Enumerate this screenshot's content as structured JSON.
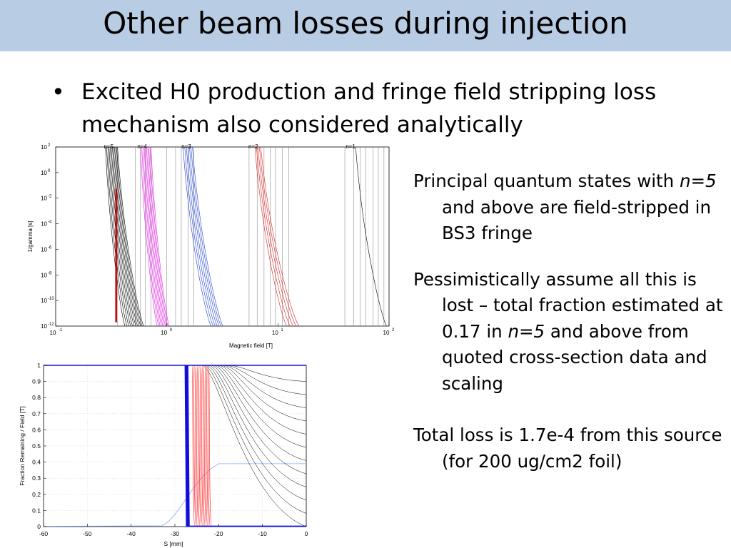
{
  "slide": {
    "title": "Other beam losses during injection",
    "bullet": "Excited H0 production and fringe field stripping loss mechanism also considered analytically",
    "para1_a": "Principal quantum states with ",
    "para1_b": "n=5",
    "para1_c": " and above are field-stripped in BS3 fringe",
    "para2_a": "Pessimistically assume all this is lost – total fraction estimated at 0.17 in ",
    "para2_b": "n=5",
    "para2_c": " and above from quoted cross-section data and scaling",
    "para3": "Total loss is 1.7e-4 from this source (for 200 ug/cm2 foil)"
  },
  "colors": {
    "title_bar": "#b8cce4",
    "marker": "#cc0000"
  },
  "chart_data": [
    {
      "type": "line",
      "xlabel": "Magnetic field [T]",
      "ylabel": "1/gamma [s]",
      "xscale": "log",
      "yscale": "log",
      "xlim": [
        0.1,
        100
      ],
      "ylim": [
        1e-12,
        100
      ],
      "xticks": [
        "10",
        "10",
        "10",
        "10"
      ],
      "xtick_exp": [
        "-1",
        "0",
        "1",
        "2"
      ],
      "yticks": [
        "10",
        "10",
        "10",
        "10",
        "10",
        "10",
        "10",
        "10"
      ],
      "ytick_exp": [
        "2",
        "0",
        "-2",
        "-4",
        "-6",
        "-8",
        "-10",
        "-12"
      ],
      "state_labels": [
        "n=5",
        "n=4",
        "n=3",
        "n=2",
        "n=1"
      ],
      "state_positions_T": [
        0.3,
        0.6,
        1.5,
        6.0,
        45.0
      ],
      "marker_field_T": 0.35,
      "groups": [
        {
          "name": "n=5",
          "color": "#000000",
          "count": 12,
          "b_at_top": [
            0.28,
            0.36
          ],
          "b_at_bottom": [
            0.42,
            0.62
          ],
          "vlines": [
            0.36
          ]
        },
        {
          "name": "n=4",
          "color": "#e020e0",
          "count": 10,
          "b_at_top": [
            0.58,
            0.72
          ],
          "b_at_bottom": [
            0.82,
            1.05
          ],
          "vlines": [
            0.52,
            0.58,
            0.64,
            0.72
          ]
        },
        {
          "name": "n=3",
          "color": "#2040d0",
          "count": 7,
          "b_at_top": [
            1.4,
            1.7
          ],
          "b_at_bottom": [
            2.5,
            3.2
          ],
          "vlines": [
            1.0,
            1.2,
            1.35,
            1.55,
            1.75
          ]
        },
        {
          "name": "n=2",
          "color": "#e02020",
          "count": 5,
          "b_at_top": [
            6.2,
            7.0
          ],
          "b_at_bottom": [
            12.0,
            15.5
          ],
          "vlines": [
            5.5,
            6.5,
            7.5,
            8.5,
            9.5,
            11.0,
            12.5
          ]
        },
        {
          "name": "n=1",
          "color": "#000000",
          "count": 1,
          "b_at_top": [
            50.0,
            50.0
          ],
          "b_at_bottom": [
            95.0,
            95.0
          ],
          "vlines": [
            40.0,
            48.0,
            55.0,
            62.0,
            72.0,
            80.0,
            90.0
          ]
        }
      ]
    },
    {
      "type": "line",
      "xlabel": "S [mm]",
      "ylabel": "Fraction Remaining / Field [T]",
      "xlim": [
        -60,
        0
      ],
      "ylim": [
        0,
        1
      ],
      "xticks": [
        "-60",
        "-50",
        "-40",
        "-30",
        "-20",
        "-10",
        "0"
      ],
      "yticks": [
        "0",
        "0.1",
        "0.2",
        "0.3",
        "0.4",
        "0.5",
        "0.6",
        "0.7",
        "0.8",
        "0.9",
        "1"
      ],
      "series": [
        {
          "color": "#1010e0",
          "count": 14,
          "step_s": [
            -27.5,
            -26.8
          ]
        },
        {
          "color": "#ff3333",
          "count": 14,
          "step_s": [
            -25.8,
            -22.0
          ]
        },
        {
          "color": "#000000",
          "count": 12,
          "decay_start_s": [
            -24.0,
            -18.0
          ],
          "final_level": [
            0.0,
            0.9
          ]
        },
        {
          "color": "#8fa8ff",
          "field": true,
          "plateau": 0.39
        }
      ]
    }
  ]
}
